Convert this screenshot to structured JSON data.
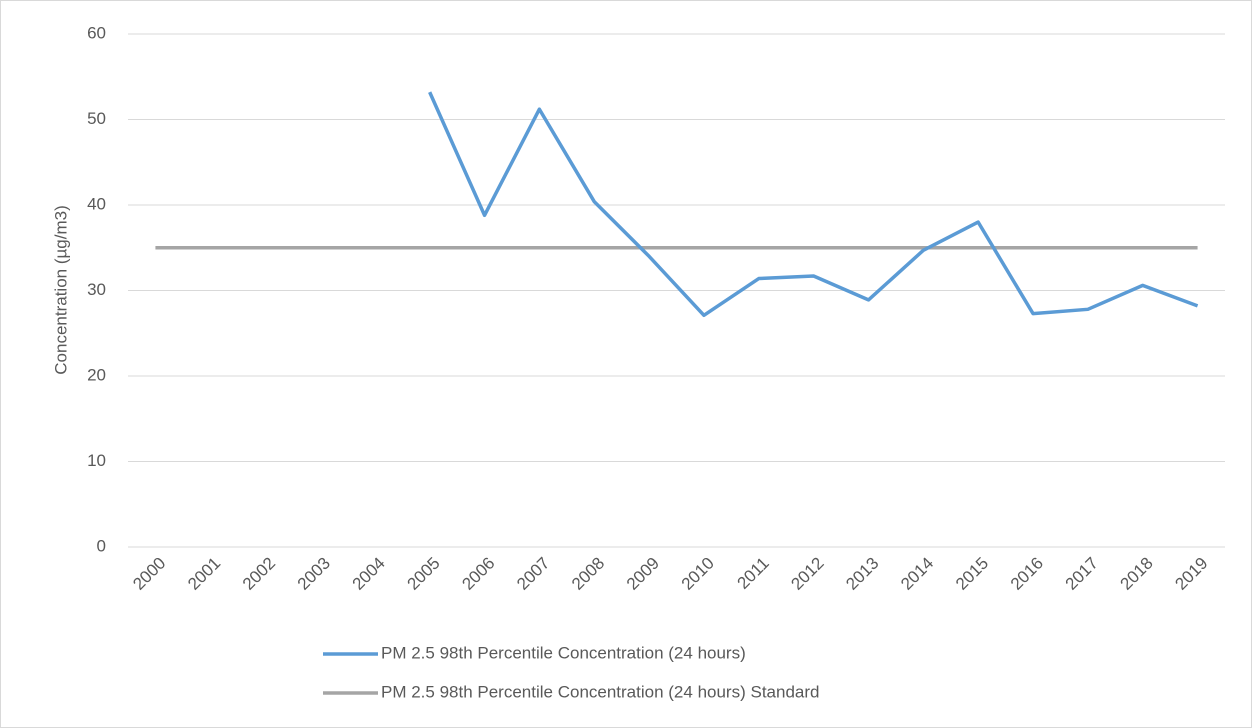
{
  "chart_data": {
    "type": "line",
    "y_label": "Concentration (µg/m3)",
    "categories": [
      "2000",
      "2001",
      "2002",
      "2003",
      "2004",
      "2005",
      "2006",
      "2007",
      "2008",
      "2009",
      "2010",
      "2011",
      "2012",
      "2013",
      "2014",
      "2015",
      "2016",
      "2017",
      "2018",
      "2019"
    ],
    "series": [
      {
        "name": "PM 2.5 98th Percentile Concentration (24 hours)",
        "color": "#5b9bd5",
        "values": [
          null,
          null,
          null,
          null,
          null,
          53.2,
          38.8,
          51.2,
          40.4,
          34.0,
          27.1,
          31.4,
          31.7,
          28.9,
          34.7,
          38.0,
          27.3,
          27.8,
          30.6,
          28.2
        ]
      },
      {
        "name": "PM 2.5 98th Percentile Concentration (24 hours) Standard",
        "color": "#a5a5a5",
        "values": [
          35,
          35,
          35,
          35,
          35,
          35,
          35,
          35,
          35,
          35,
          35,
          35,
          35,
          35,
          35,
          35,
          35,
          35,
          35,
          35
        ]
      }
    ],
    "ylim": [
      0,
      60
    ],
    "yticks": [
      0,
      10,
      20,
      30,
      40,
      50,
      60
    ],
    "grid": true,
    "legend": "bottom"
  }
}
